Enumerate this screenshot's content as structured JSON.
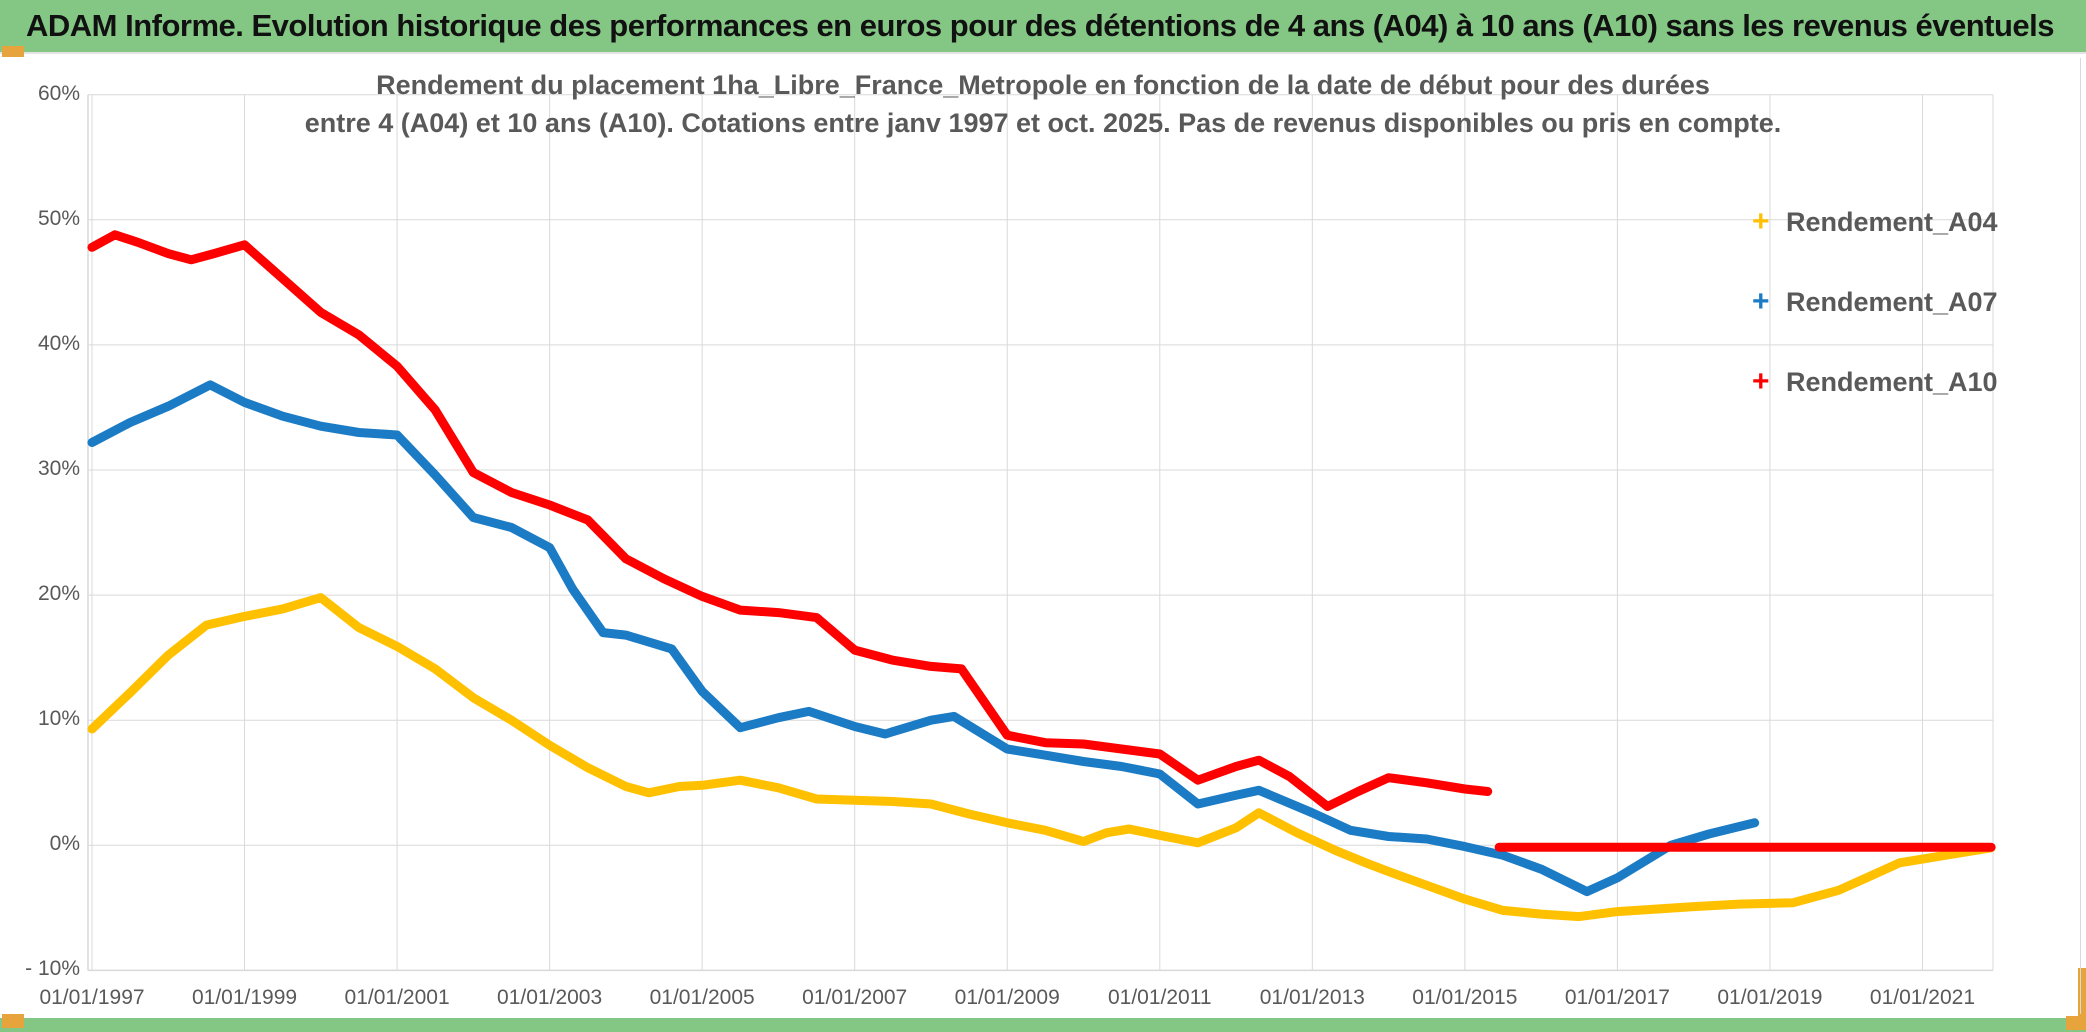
{
  "banner": {
    "title": "ADAM Informe. Evolution historique des performances en euros pour des détentions de 4 ans (A04) à 10 ans (A10) sans les revenus éventuels",
    "background": "#84C784",
    "handle_color": "#E7A33C"
  },
  "chart_data": {
    "type": "line",
    "title_line1": "Rendement du placement 1ha_Libre_France_Metropole en fonction de la date de début pour des durées",
    "title_line2": "entre 4 (A04) et 10 ans (A10). Cotations entre janv 1997 et oct. 2025. Pas de revenus disponibles ou pris en compte.",
    "grid": true,
    "grid_color": "#d9d9d9",
    "axis_text_color": "#595959",
    "x_axis": {
      "tick_labels": [
        "01/01/1997",
        "01/01/1999",
        "01/01/2001",
        "01/01/2003",
        "01/01/2005",
        "01/01/2007",
        "01/01/2009",
        "01/01/2011",
        "01/01/2013",
        "01/01/2015",
        "01/01/2017",
        "01/01/2019",
        "01/01/2021"
      ],
      "tick_years": [
        1997,
        1999,
        2001,
        2003,
        2005,
        2007,
        2009,
        2011,
        2013,
        2015,
        2017,
        2019,
        2021
      ],
      "range_years": [
        1996.85,
        2022.0
      ]
    },
    "y_axis": {
      "tick_labels": [
        "60%",
        "50%",
        "40%",
        "30%",
        "20%",
        "10%",
        "0%",
        "- 10%"
      ],
      "tick_values": [
        60,
        50,
        40,
        30,
        20,
        10,
        0,
        -10
      ],
      "ylim": [
        -10,
        60
      ]
    },
    "legend_position": "right",
    "marker_style": "plus",
    "series": [
      {
        "name": "Rendement_A04",
        "color": "#FFC000",
        "points": [
          [
            1997.0,
            9.3
          ],
          [
            1997.5,
            12.2
          ],
          [
            1998.0,
            15.2
          ],
          [
            1998.5,
            17.6
          ],
          [
            1999.0,
            18.3
          ],
          [
            1999.5,
            18.9
          ],
          [
            2000.0,
            19.8
          ],
          [
            2000.5,
            17.4
          ],
          [
            2001.0,
            15.9
          ],
          [
            2001.5,
            14.1
          ],
          [
            2002.0,
            11.8
          ],
          [
            2002.5,
            10.0
          ],
          [
            2003.0,
            8.0
          ],
          [
            2003.5,
            6.2
          ],
          [
            2004.0,
            4.7
          ],
          [
            2004.3,
            4.2
          ],
          [
            2004.7,
            4.7
          ],
          [
            2005.0,
            4.8
          ],
          [
            2005.5,
            5.2
          ],
          [
            2006.0,
            4.6
          ],
          [
            2006.5,
            3.7
          ],
          [
            2007.0,
            3.6
          ],
          [
            2007.5,
            3.5
          ],
          [
            2008.0,
            3.3
          ],
          [
            2008.5,
            2.5
          ],
          [
            2009.0,
            1.8
          ],
          [
            2009.5,
            1.2
          ],
          [
            2010.0,
            0.3
          ],
          [
            2010.3,
            1.0
          ],
          [
            2010.6,
            1.3
          ],
          [
            2011.0,
            0.8
          ],
          [
            2011.5,
            0.2
          ],
          [
            2012.0,
            1.4
          ],
          [
            2012.3,
            2.6
          ],
          [
            2012.8,
            1.0
          ],
          [
            2013.3,
            -0.4
          ],
          [
            2013.7,
            -1.4
          ],
          [
            2014.0,
            -2.1
          ],
          [
            2014.5,
            -3.2
          ],
          [
            2015.0,
            -4.3
          ],
          [
            2015.5,
            -5.2
          ],
          [
            2016.0,
            -5.5
          ],
          [
            2016.5,
            -5.7
          ],
          [
            2017.0,
            -5.3
          ],
          [
            2017.5,
            -5.1
          ],
          [
            2018.0,
            -4.9
          ],
          [
            2018.6,
            -4.7
          ],
          [
            2019.3,
            -4.6
          ],
          [
            2019.9,
            -3.6
          ],
          [
            2020.3,
            -2.5
          ],
          [
            2020.7,
            -1.4
          ],
          [
            2021.2,
            -0.9
          ],
          [
            2021.6,
            -0.5
          ],
          [
            2021.9,
            -0.2
          ]
        ]
      },
      {
        "name": "Rendement_A07",
        "color": "#1B7BC4",
        "points": [
          [
            1997.0,
            32.2
          ],
          [
            1997.5,
            33.8
          ],
          [
            1998.0,
            35.1
          ],
          [
            1998.55,
            36.8
          ],
          [
            1999.0,
            35.4
          ],
          [
            1999.5,
            34.3
          ],
          [
            2000.0,
            33.5
          ],
          [
            2000.5,
            33.0
          ],
          [
            2001.0,
            32.8
          ],
          [
            2001.5,
            29.6
          ],
          [
            2002.0,
            26.2
          ],
          [
            2002.5,
            25.4
          ],
          [
            2003.0,
            23.8
          ],
          [
            2003.3,
            20.5
          ],
          [
            2003.7,
            17.0
          ],
          [
            2004.0,
            16.8
          ],
          [
            2004.6,
            15.7
          ],
          [
            2005.0,
            12.3
          ],
          [
            2005.5,
            9.4
          ],
          [
            2006.0,
            10.2
          ],
          [
            2006.4,
            10.7
          ],
          [
            2007.0,
            9.5
          ],
          [
            2007.4,
            8.9
          ],
          [
            2008.0,
            10.0
          ],
          [
            2008.3,
            10.3
          ],
          [
            2009.0,
            7.7
          ],
          [
            2009.5,
            7.2
          ],
          [
            2010.0,
            6.7
          ],
          [
            2010.5,
            6.3
          ],
          [
            2011.0,
            5.7
          ],
          [
            2011.5,
            3.3
          ],
          [
            2012.0,
            4.0
          ],
          [
            2012.3,
            4.4
          ],
          [
            2013.0,
            2.6
          ],
          [
            2013.5,
            1.2
          ],
          [
            2014.0,
            0.7
          ],
          [
            2014.5,
            0.5
          ],
          [
            2015.0,
            -0.1
          ],
          [
            2015.5,
            -0.8
          ],
          [
            2016.0,
            -1.9
          ],
          [
            2016.6,
            -3.7
          ],
          [
            2017.0,
            -2.6
          ],
          [
            2017.7,
            0.0
          ],
          [
            2018.2,
            0.9
          ],
          [
            2018.8,
            1.8
          ]
        ]
      },
      {
        "name": "Rendement_A10",
        "color": "#FE0000",
        "points": [
          [
            1997.0,
            47.8
          ],
          [
            1997.15,
            48.3
          ],
          [
            1997.3,
            48.8
          ],
          [
            1997.6,
            48.2
          ],
          [
            1998.0,
            47.3
          ],
          [
            1998.3,
            46.8
          ],
          [
            1998.6,
            47.3
          ],
          [
            1999.0,
            48.0
          ],
          [
            1999.5,
            45.3
          ],
          [
            2000.0,
            42.6
          ],
          [
            2000.5,
            40.8
          ],
          [
            2001.0,
            38.3
          ],
          [
            2001.5,
            34.8
          ],
          [
            2002.0,
            29.8
          ],
          [
            2002.5,
            28.2
          ],
          [
            2003.0,
            27.2
          ],
          [
            2003.5,
            26.0
          ],
          [
            2004.0,
            22.9
          ],
          [
            2004.5,
            21.3
          ],
          [
            2005.0,
            19.9
          ],
          [
            2005.5,
            18.8
          ],
          [
            2006.0,
            18.6
          ],
          [
            2006.5,
            18.2
          ],
          [
            2007.0,
            15.6
          ],
          [
            2007.5,
            14.8
          ],
          [
            2008.0,
            14.3
          ],
          [
            2008.4,
            14.1
          ],
          [
            2009.0,
            8.8
          ],
          [
            2009.5,
            8.2
          ],
          [
            2010.0,
            8.1
          ],
          [
            2010.5,
            7.7
          ],
          [
            2011.0,
            7.3
          ],
          [
            2011.5,
            5.2
          ],
          [
            2012.0,
            6.3
          ],
          [
            2012.3,
            6.8
          ],
          [
            2012.7,
            5.5
          ],
          [
            2013.2,
            3.1
          ],
          [
            2013.6,
            4.3
          ],
          [
            2014.0,
            5.4
          ],
          [
            2014.5,
            5.0
          ],
          [
            2015.0,
            4.5
          ],
          [
            2015.3,
            4.3
          ]
        ]
      },
      {
        "name": "Rendement_A10_flat",
        "color": "#FE0000",
        "legend": false,
        "points": [
          [
            2015.45,
            -0.15
          ],
          [
            2021.9,
            -0.15
          ]
        ]
      }
    ],
    "legend": [
      {
        "label": "Rendement_A04",
        "color": "#FFC000",
        "marker": "+"
      },
      {
        "label": "Rendement_A07",
        "color": "#1B7BC4",
        "marker": "+"
      },
      {
        "label": "Rendement_A10",
        "color": "#FE0000",
        "marker": "+"
      }
    ]
  }
}
